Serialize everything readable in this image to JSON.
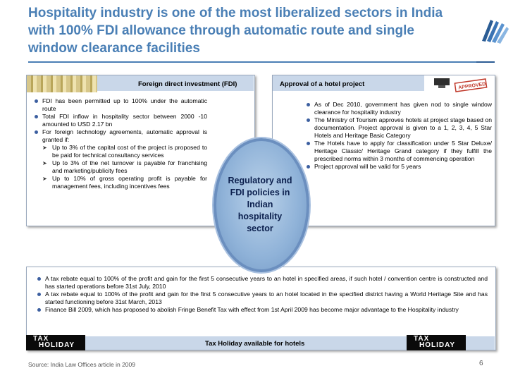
{
  "title": "Hospitality industry is one of the most liberalized sectors in India with 100% FDI allowance through automatic route and single window clearance facilities",
  "fdi_panel": {
    "heading": "Foreign direct investment (FDI)",
    "bullets": [
      "FDI has been permitted up to 100% under the automatic route",
      "Total FDI inflow in hospitality  sector between 2000 -10  amounted to USD 2.17 bn",
      "For foreign technology agreements, automatic approval is granted if:"
    ],
    "sub_bullets": [
      "Up to 3% of the capital cost of the project is proposed to be paid for technical consultancy services",
      "Up to 3% of the net turnover is payable for franchising and marketing/publicity fees",
      "Up to 10% of gross operating profit is payable for management fees, including incentives fees"
    ]
  },
  "approval_panel": {
    "heading": "Approval of a hotel project",
    "bullets": [
      "As of Dec  2010, government has given nod to single window clearance for hospitality industry",
      "The Ministry of Tourism  approves hotels at project stage based on documentation. Project approval is given to a 1, 2, 3, 4, 5 Star Hotels and Heritage Basic Category",
      "The Hotels have to apply for classification under 5 Star Deluxe/ Heritage Classic/ Heritage Grand category if they fulfill the prescribed norms within 3 months of commencing operation",
      "Project approval will be valid for 5 years"
    ]
  },
  "center": {
    "label": "Regulatory and FDI policies in Indian hospitality sector"
  },
  "tax_panel": {
    "bullets": [
      "A tax rebate equal to 100% of the profit and gain for the first 5 consecutive years to an hotel in specified areas, if such hotel / convention centre is constructed and has started operations before 31st July, 2010",
      "A tax rebate equal to 100% of the profit and gain for the first 5 consecutive years to an hotel located in the specified district having a World Heritage Site and  has started functioning before 31st March, 2013",
      "Finance Bill 2009, which has proposed to abolish Fringe Benefit Tax with effect from 1st April 2009 has become major advantage to the Hospitality industry"
    ],
    "footer": "Tax Holiday available  for hotels",
    "badge_line1": "TAX",
    "badge_line2": "HOLIDAY"
  },
  "stamp_text": "APPROVED",
  "source": "Source: India Law Offices article  in 2009",
  "page_number": "6",
  "colors": {
    "title": "#4a7fb5",
    "header_band": "#c9d7e9",
    "bullet": "#3c5fa0"
  }
}
